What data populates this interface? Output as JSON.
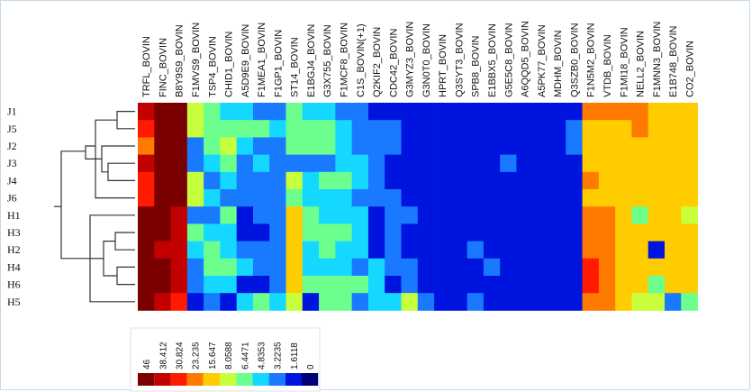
{
  "chart_data": {
    "type": "heatmap",
    "columns": [
      "TRFL_BOVIN",
      "FINC_BOVIN",
      "B8Y9S9_BOVIN",
      "F1MVS9_BOVIN",
      "TSP4_BOVIN",
      "CHID1_BOVIN",
      "A5D9E9_BOVIN",
      "F1MEA1_BOVIN",
      "F1GP1_BOVIN",
      "ST14_BOVIN",
      "E1BGJ4_BOVIN",
      "G3X755_BOVIN",
      "F1MCF8_BOVIN",
      "C1S_BOVIN(+1)",
      "Q2KIF2_BOVIN",
      "CDC42_BOVIN",
      "G3MYZ3_BOVIN",
      "G3N0T0_BOVIN",
      "HPRT_BOVIN",
      "Q3SYT3_BOVIN",
      "SPB8_BOVIN",
      "E1BBX5_BOVIN",
      "G5E5C8_BOVIN",
      "A6QQD5_BOVIN",
      "A5PK77_BOVIN",
      "MDHM_BOVIN",
      "Q3SZB0_BOVIN",
      "F1N5M2_BOVIN",
      "VTDB_BOVIN",
      "F1MI18_BOVIN",
      "NELL2_BOVIN",
      "F1MNN3_BOVIN",
      "E1B748_BOVIN",
      "CO2_BOVIN"
    ],
    "rows": [
      "J1",
      "J5",
      "J2",
      "J3",
      "J4",
      "J6",
      "H1",
      "H3",
      "H2",
      "H4",
      "H6",
      "H5"
    ],
    "values": [
      [
        40,
        46,
        46,
        10,
        6,
        5,
        5,
        4,
        3,
        6,
        5,
        5,
        4,
        4,
        2,
        2,
        1,
        2,
        1,
        2,
        2,
        1,
        2,
        1,
        1,
        1,
        2,
        20,
        20,
        20,
        25,
        16,
        14,
        13
      ],
      [
        30,
        46,
        46,
        11,
        7,
        6,
        6,
        6,
        5,
        7,
        6,
        6,
        5,
        4,
        3,
        3,
        2,
        2,
        2,
        2,
        2,
        2,
        2,
        2,
        2,
        2,
        3,
        19,
        18,
        18,
        21,
        17,
        15,
        15
      ],
      [
        27,
        46,
        46,
        3,
        7,
        9,
        5,
        4,
        4,
        7,
        7,
        6,
        5,
        4,
        4,
        3,
        2,
        1,
        2,
        1,
        2,
        2,
        2,
        1,
        2,
        2,
        3,
        18,
        17,
        16,
        16,
        15,
        15,
        14
      ],
      [
        38,
        46,
        46,
        3,
        5,
        7,
        4,
        5,
        4,
        4,
        4,
        3,
        5,
        5,
        3,
        2,
        1,
        2,
        2,
        2,
        2,
        2,
        3,
        1,
        1,
        2,
        2,
        19,
        17,
        16,
        17,
        15,
        15,
        15
      ],
      [
        30,
        46,
        46,
        8,
        4,
        5,
        4,
        3,
        4,
        8,
        5,
        6,
        7,
        5,
        4,
        2,
        1,
        2,
        1,
        2,
        2,
        2,
        2,
        1,
        1,
        2,
        2,
        20,
        19,
        16,
        17,
        15,
        15,
        16
      ],
      [
        34,
        46,
        46,
        11,
        5,
        4,
        3,
        4,
        4,
        7,
        5,
        5,
        5,
        4,
        3,
        3,
        2,
        1,
        1,
        2,
        2,
        2,
        1,
        1,
        2,
        2,
        2,
        17,
        17,
        15,
        18,
        15,
        14,
        14
      ],
      [
        46,
        44,
        39,
        4,
        3,
        6,
        2,
        3,
        3,
        12,
        6,
        5,
        5,
        5,
        2,
        3,
        3,
        1,
        1,
        2,
        2,
        1,
        2,
        1,
        2,
        2,
        2,
        25,
        25,
        17,
        6,
        15,
        12,
        11
      ],
      [
        46,
        44,
        39,
        7,
        5,
        5,
        2,
        2,
        3,
        12,
        6,
        6,
        7,
        5,
        2,
        3,
        2,
        1,
        1,
        2,
        2,
        2,
        2,
        1,
        1,
        2,
        2,
        25,
        24,
        16,
        15,
        13,
        15,
        14
      ],
      [
        46,
        42,
        40,
        5,
        7,
        5,
        4,
        4,
        3,
        12,
        5,
        6,
        5,
        5,
        2,
        3,
        2,
        1,
        1,
        2,
        3,
        2,
        2,
        1,
        1,
        2,
        2,
        26,
        27,
        15,
        14,
        2,
        14,
        13
      ],
      [
        46,
        44,
        42,
        3,
        7,
        7,
        5,
        3,
        4,
        12,
        5,
        5,
        5,
        4,
        5,
        3,
        4,
        1,
        1,
        2,
        2,
        4,
        2,
        1,
        1,
        2,
        2,
        32,
        25,
        15,
        15,
        15,
        15,
        14
      ],
      [
        46,
        44,
        42,
        3,
        5,
        5,
        2,
        2,
        4,
        15,
        7,
        6,
        7,
        6,
        5,
        1,
        4,
        1,
        1,
        2,
        2,
        2,
        2,
        1,
        1,
        2,
        2,
        30,
        26,
        17,
        14,
        6,
        15,
        14
      ],
      [
        46,
        40,
        33,
        2,
        3,
        2,
        5,
        7,
        5,
        9,
        2,
        6,
        7,
        4,
        5,
        5,
        9,
        3,
        2,
        2,
        3,
        2,
        2,
        1,
        2,
        2,
        2,
        27,
        25,
        14,
        9,
        9,
        4,
        6
      ]
    ],
    "scale_max": 46,
    "legend_ticks": [
      "46",
      "38.412",
      "30.824",
      "23.235",
      "15.647",
      "8.0588",
      "6.4471",
      "4.8353",
      "3.2235",
      "1.6118",
      "0"
    ],
    "colors": {
      "palette": [
        "#7a0000",
        "#c20000",
        "#ff1a00",
        "#ff7a00",
        "#ffcc00",
        "#c8ff3c",
        "#6cff8e",
        "#14d8ff",
        "#1a7aff",
        "#0014e0",
        "#000078"
      ],
      "background": "#ffffff",
      "dendrogram": "#333333"
    }
  }
}
